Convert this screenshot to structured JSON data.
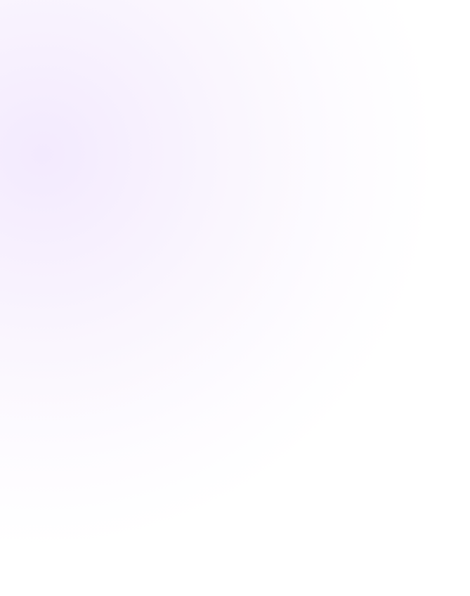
{
  "background": {
    "colors": [
      "#f3eafe",
      "#ffffff"
    ]
  }
}
